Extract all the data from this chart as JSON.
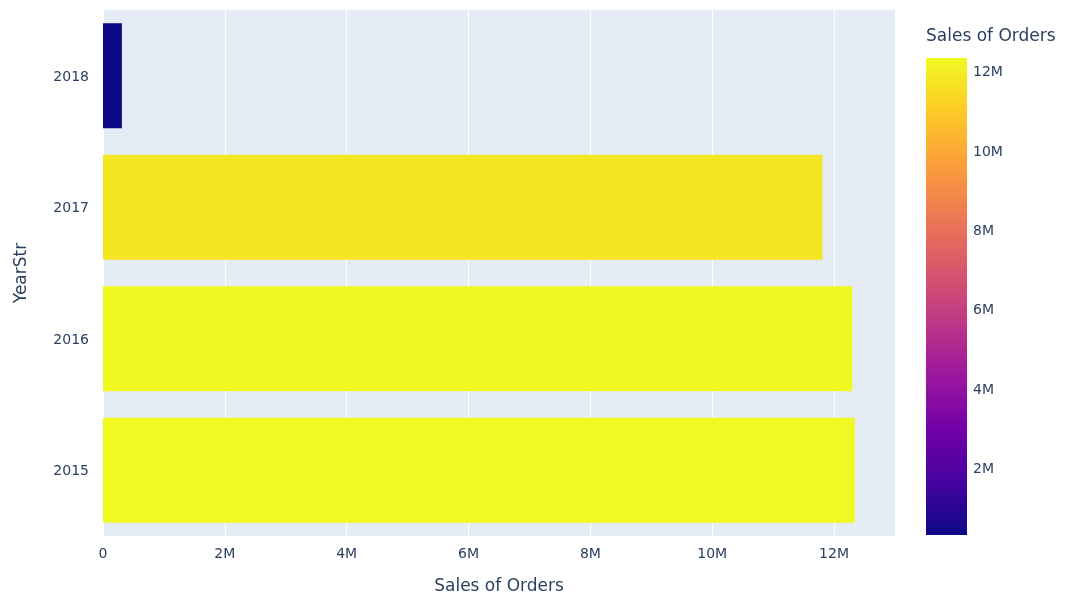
{
  "chart_data": {
    "type": "bar",
    "orientation": "horizontal",
    "categories": [
      "2018",
      "2017",
      "2016",
      "2015"
    ],
    "values": [
      310000,
      11810000,
      12300000,
      12340000
    ],
    "xlabel": "Sales of Orders",
    "ylabel": "YearStr",
    "clabel": "Sales of Orders",
    "xlim": [
      0,
      13000000
    ],
    "xticks": [
      {
        "value": 0,
        "label": "0"
      },
      {
        "value": 2000000,
        "label": "2M"
      },
      {
        "value": 4000000,
        "label": "4M"
      },
      {
        "value": 6000000,
        "label": "6M"
      },
      {
        "value": 8000000,
        "label": "8M"
      },
      {
        "value": 10000000,
        "label": "10M"
      },
      {
        "value": 12000000,
        "label": "12M"
      }
    ],
    "clim": [
      310000,
      12340000
    ],
    "cticks": [
      {
        "value": 2000000,
        "label": "2M"
      },
      {
        "value": 4000000,
        "label": "4M"
      },
      {
        "value": 6000000,
        "label": "6M"
      },
      {
        "value": 8000000,
        "label": "8M"
      },
      {
        "value": 10000000,
        "label": "10M"
      },
      {
        "value": 12000000,
        "label": "12M"
      }
    ],
    "grid": "x"
  }
}
